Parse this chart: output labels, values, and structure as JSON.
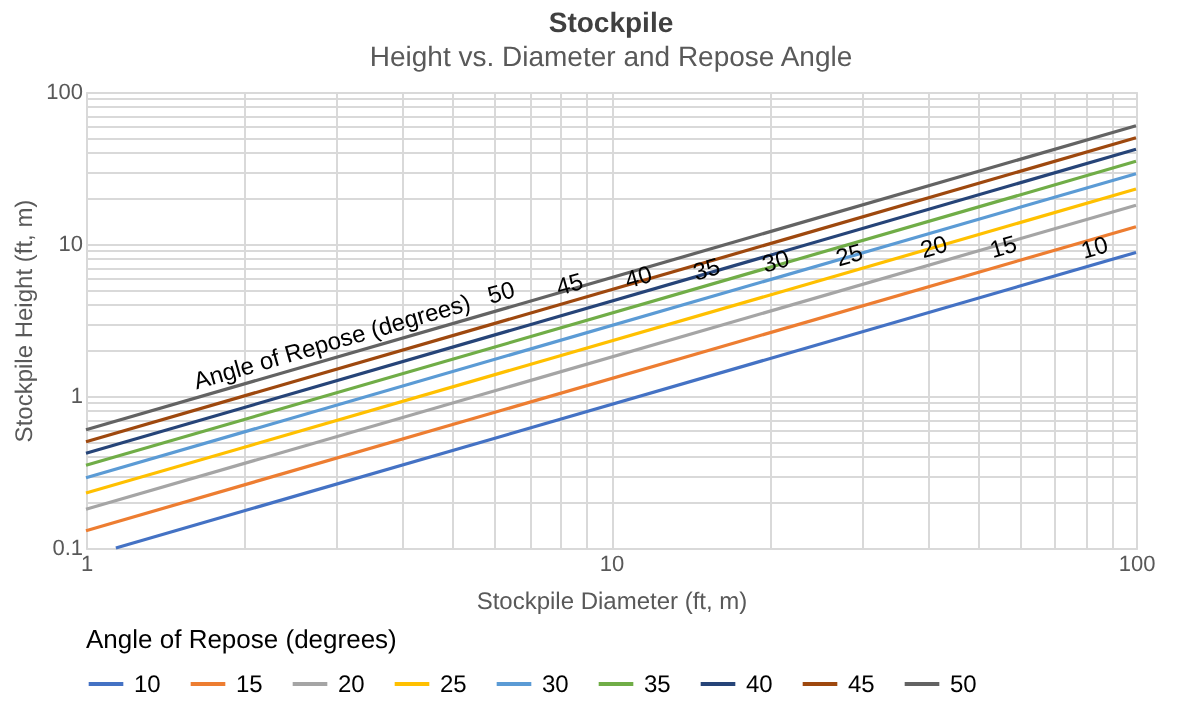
{
  "chart_data": {
    "type": "line",
    "title": "Stockpile",
    "subtitle": "Height vs. Diameter and Repose Angle",
    "xlabel": "Stockpile Diameter (ft, m)",
    "ylabel": "Stockpile Height (ft, m)",
    "legend_title": "Angle of Repose (degrees)",
    "log": "xy",
    "grid": true,
    "legend": "bottom",
    "xlim": [
      1,
      100
    ],
    "ylim": [
      0.1,
      100
    ],
    "xticks": [
      1,
      {
        "value": 2,
        "label": null
      },
      {
        "value": 3,
        "label": null
      },
      {
        "value": 4,
        "label": null
      },
      {
        "value": 5,
        "label": null
      },
      {
        "value": 6,
        "label": null
      },
      {
        "value": 7,
        "label": null
      },
      {
        "value": 8,
        "label": null
      },
      {
        "value": 9,
        "label": null
      },
      10,
      {
        "value": 20,
        "label": null
      },
      {
        "value": 30,
        "label": null
      },
      {
        "value": 40,
        "label": null
      },
      {
        "value": 50,
        "label": null
      },
      {
        "value": 60,
        "label": null
      },
      {
        "value": 70,
        "label": null
      },
      {
        "value": 80,
        "label": null
      },
      {
        "value": 90,
        "label": null
      },
      100
    ],
    "yticks": [
      0.1,
      {
        "value": 0.2,
        "label": null
      },
      {
        "value": 0.3,
        "label": null
      },
      {
        "value": 0.4,
        "label": null
      },
      {
        "value": 0.5,
        "label": null
      },
      {
        "value": 0.6,
        "label": null
      },
      {
        "value": 0.7,
        "label": null
      },
      {
        "value": 0.8,
        "label": null
      },
      {
        "value": 0.9,
        "label": null
      },
      1,
      {
        "value": 2,
        "label": null
      },
      {
        "value": 3,
        "label": null
      },
      {
        "value": 4,
        "label": null
      },
      {
        "value": 5,
        "label": null
      },
      {
        "value": 6,
        "label": null
      },
      {
        "value": 7,
        "label": null
      },
      {
        "value": 8,
        "label": null
      },
      {
        "value": 9,
        "label": null
      },
      10,
      {
        "value": 20,
        "label": null
      },
      {
        "value": 30,
        "label": null
      },
      {
        "value": 40,
        "label": null
      },
      {
        "value": 50,
        "label": null
      },
      {
        "value": 60,
        "label": null
      },
      {
        "value": 70,
        "label": null
      },
      {
        "value": 80,
        "label": null
      },
      {
        "value": 90,
        "label": null
      },
      100
    ],
    "x": [
      1,
      100
    ],
    "series": [
      {
        "name": "10",
        "color": "#4472c4",
        "x": [
          1.14,
          100
        ],
        "values": [
          0.1,
          8.8
        ]
      },
      {
        "name": "15",
        "color": "#ed7d31",
        "values": [
          0.13,
          13
        ]
      },
      {
        "name": "20",
        "color": "#a5a5a5",
        "values": [
          0.18,
          18
        ]
      },
      {
        "name": "25",
        "color": "#ffc000",
        "values": [
          0.23,
          23
        ]
      },
      {
        "name": "30",
        "color": "#5b9bd5",
        "values": [
          0.29,
          29
        ]
      },
      {
        "name": "35",
        "color": "#70ad47",
        "values": [
          0.35,
          35
        ]
      },
      {
        "name": "40",
        "color": "#264478",
        "values": [
          0.42,
          42
        ]
      },
      {
        "name": "45",
        "color": "#9e480e",
        "values": [
          0.5,
          50
        ]
      },
      {
        "name": "50",
        "color": "#636363",
        "values": [
          0.6,
          60
        ]
      }
    ],
    "annotations": [
      {
        "text": "Angle of Repose (degrees)",
        "x": 3,
        "y": 1.8
      },
      {
        "text": "50",
        "x": 6.3,
        "y": 3.8
      },
      {
        "text": "45",
        "x": 8.5,
        "y": 4.3
      },
      {
        "text": "40",
        "x": 11.5,
        "y": 4.8
      },
      {
        "text": "35",
        "x": 15.5,
        "y": 5.4
      },
      {
        "text": "30",
        "x": 21,
        "y": 6.1
      },
      {
        "text": "25",
        "x": 29,
        "y": 6.7
      },
      {
        "text": "20",
        "x": 42,
        "y": 7.6
      },
      {
        "text": "15",
        "x": 57,
        "y": 7.6
      },
      {
        "text": "10",
        "x": 85,
        "y": 7.5
      }
    ]
  }
}
